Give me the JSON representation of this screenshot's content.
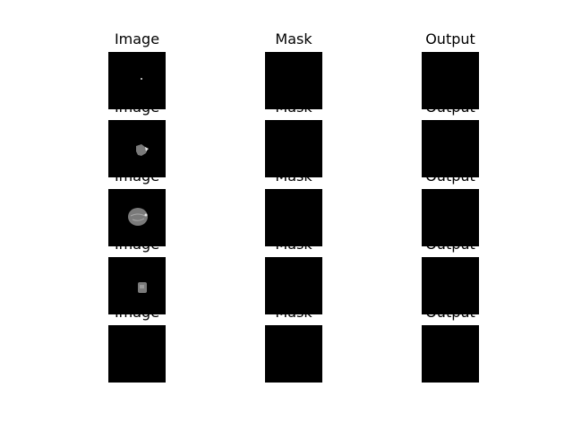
{
  "columns": [
    "Image",
    "Mask",
    "Output"
  ],
  "rows": [
    {
      "image_content": "single-bright-dot",
      "mask_content": "blank",
      "output_content": "blank"
    },
    {
      "image_content": "small-gray-blob",
      "mask_content": "blank",
      "output_content": "blank"
    },
    {
      "image_content": "large-gray-blob",
      "mask_content": "blank",
      "output_content": "blank"
    },
    {
      "image_content": "small-square-blob",
      "mask_content": "blank",
      "output_content": "blank"
    },
    {
      "image_content": "blank",
      "mask_content": "blank",
      "output_content": "blank"
    }
  ],
  "colors": {
    "background": "#ffffff",
    "panel": "#000000",
    "tissue": "#7a7a7a",
    "highlight": "#e6e6e6"
  }
}
